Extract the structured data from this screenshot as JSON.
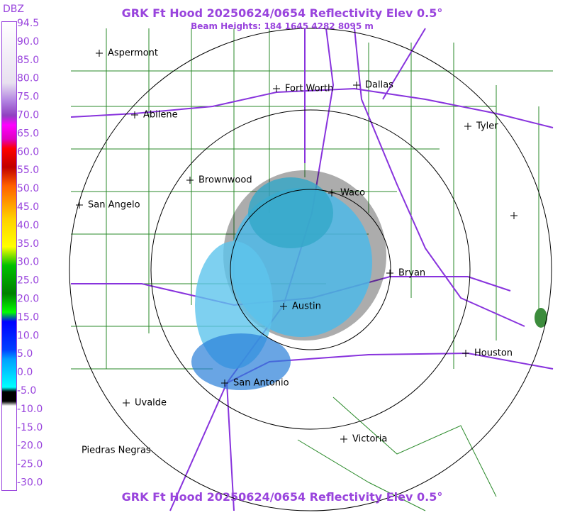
{
  "header": {
    "title": "GRK Ft Hood 20250624/0654 Reflectivity Elev 0.5°",
    "subtitle": "Beam Heights: 184 1645 4282 8095 m",
    "footer": "GRK Ft Hood 20250624/0654 Reflectivity Elev 0.5°"
  },
  "legend": {
    "title": "DBZ",
    "labels": [
      "94.5",
      "90.0",
      "85.0",
      "80.0",
      "75.0",
      "70.0",
      "65.0",
      "60.0",
      "55.0",
      "50.0",
      "45.0",
      "40.0",
      "35.0",
      "30.0",
      "25.0",
      "20.0",
      "15.0",
      "10.0",
      "5.0",
      "0.0",
      "-5.0",
      "-10.0",
      "-15.0",
      "-20.0",
      "-25.0",
      "-30.0"
    ]
  },
  "cities": [
    "Aspermont",
    "Fort Worth",
    "Dallas",
    "Abilene",
    "Tyler",
    "Brownwood",
    "Waco",
    "San Angelo",
    "Bryan",
    "Austin",
    "Houston",
    "San Antonio",
    "Uvalde",
    "Victoria",
    "Piedras Negras"
  ]
}
